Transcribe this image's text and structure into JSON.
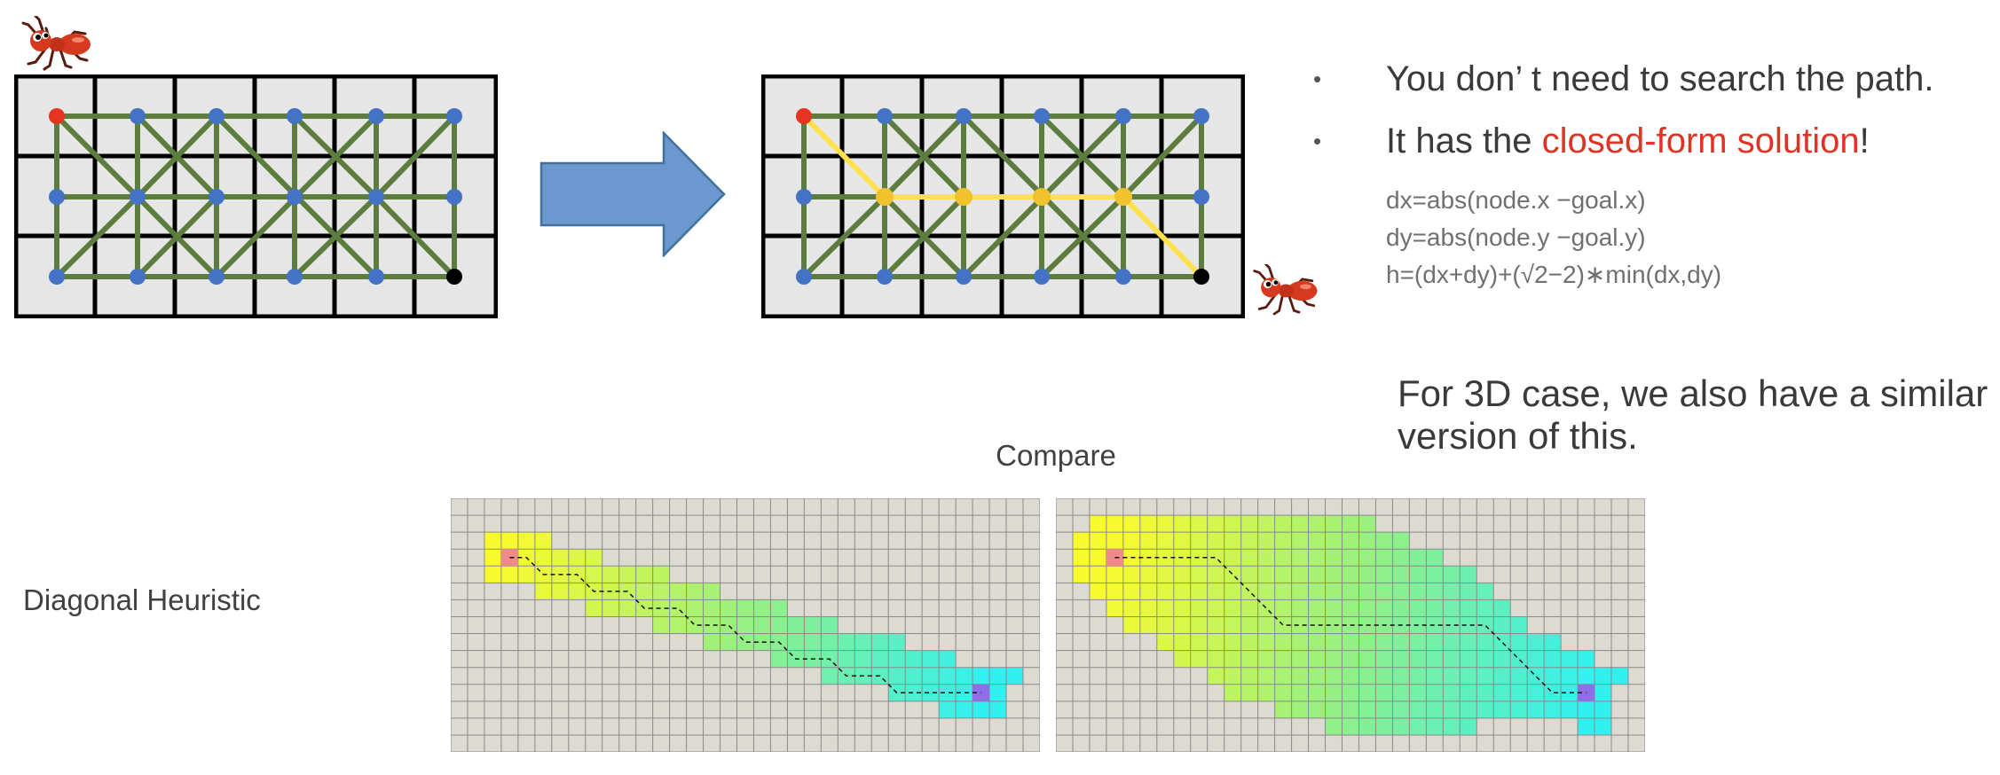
{
  "bullets": [
    {
      "text": "You don’  t need to search the path."
    },
    {
      "prefix": "It has the ",
      "highlight": "closed-form solution",
      "suffix": "!"
    }
  ],
  "bullet_symbol": "•",
  "formulas": [
    "dx=abs(node.x −goal.x)",
    "dy=abs(node.y −goal.y)",
    "h=(dx+dy)+(√2−2)∗min(dx,dy)"
  ],
  "note_3d": "For 3D case, we also have a similar version of this.",
  "compare_label": "Compare",
  "row_label": "Diagonal Heuristic",
  "colors": {
    "grid_line": "#000000",
    "cell_fill": "#e6e6e6",
    "edge": "#5c7d3e",
    "node": "#4472c4",
    "start_node": "#e53420",
    "goal_node": "#000000",
    "path_edge": "#ffe14d",
    "path_node": "#f2c12e",
    "arrow_fill": "#6a98cf",
    "arrow_stroke": "#41719c",
    "highlight_text": "#e03325"
  },
  "icons": [
    "ant-icon",
    "arrow-right-icon"
  ]
}
